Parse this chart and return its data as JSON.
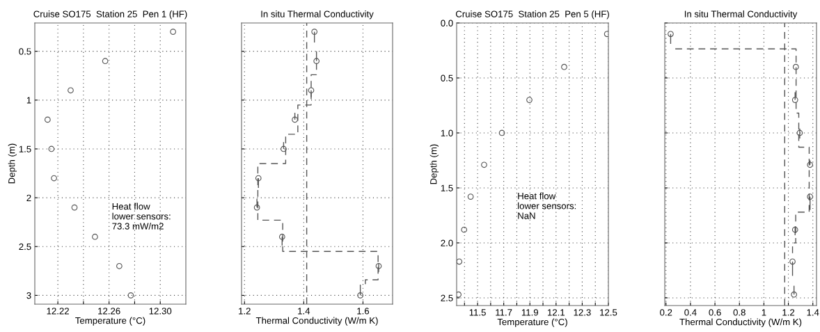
{
  "chart_data": [
    {
      "type": "scatter",
      "title": "Cruise SO175  Station 25  Pen 1 (HF)",
      "xlabel": "Temperature (°C)",
      "ylabel": "Depth (m)",
      "annotations": [
        "Heat flow\nlower sensors:\n73.3 mW/m2"
      ],
      "xlim": [
        12.202,
        12.32
      ],
      "xticks": [
        12.22,
        {
          "value": 12.24,
          "label": null
        },
        12.26,
        {
          "value": 12.28,
          "label": null
        },
        {
          "value": 12.3,
          "label": "12.30"
        }
      ],
      "ylim": [
        3.09,
        0.21
      ],
      "yticks": [
        0.5,
        1,
        1.5,
        2,
        2.5,
        3
      ],
      "grid": true,
      "marker": "circle",
      "series": [
        {
          "color": "#555555",
          "x": [
            12.31,
            12.257,
            12.23,
            12.212,
            12.215,
            12.217,
            12.233,
            12.249,
            12.268,
            12.277
          ],
          "values": [
            0.3,
            0.6,
            0.9,
            1.2,
            1.5,
            1.8,
            2.1,
            2.4,
            2.7,
            3.0
          ]
        }
      ]
    },
    {
      "type": "scatter",
      "title": "In situ Thermal Conductivity",
      "xlabel": "Thermal Conductivity (W/m K)",
      "xlim": [
        1.19,
        1.7
      ],
      "xticks": [
        1.2,
        1.4,
        1.6
      ],
      "ylim": [
        3.09,
        0.21
      ],
      "yticks": [
        0.5,
        1,
        1.5,
        2,
        2.5,
        3
      ],
      "tick_labels": "x",
      "grid": true,
      "marker": "circle",
      "ref_lines": [
        {
          "axis": "x",
          "value": 1.41,
          "color": "#555555",
          "line_style": "dashed"
        }
      ],
      "series": [
        {
          "color": "#555555",
          "x": [
            1.436,
            1.443,
            1.425,
            1.37,
            1.332,
            1.247,
            1.242,
            1.327,
            1.653,
            1.591
          ],
          "values": [
            0.3,
            0.6,
            0.9,
            1.2,
            1.5,
            1.8,
            2.1,
            2.4,
            2.7,
            3.0
          ],
          "errors": [
            [
              0.3,
              0.41
            ],
            [
              0.5,
              0.6
            ],
            [
              0.9,
              0.97
            ],
            [
              1.13,
              1.2
            ],
            [
              1.43,
              1.5
            ],
            [
              1.8,
              1.9
            ],
            [
              2.01,
              2.1
            ],
            [
              2.4,
              2.49
            ],
            [
              2.67,
              2.76
            ],
            [
              2.89,
              3.0
            ]
          ]
        },
        {
          "type": "line",
          "line_style": "dashed",
          "marker": "none",
          "color": "#555555",
          "x": [
            1.443,
            1.443,
            1.425,
            1.425,
            1.38,
            1.38,
            1.339,
            1.339,
            1.245,
            1.245,
            1.329,
            1.329,
            1.651,
            1.651,
            1.608,
            1.608
          ],
          "values": [
            0.62,
            0.74,
            0.74,
            1.05,
            1.05,
            1.35,
            1.35,
            1.65,
            1.65,
            2.23,
            2.23,
            2.55,
            2.55,
            2.84,
            2.84,
            2.9
          ]
        }
      ]
    },
    {
      "type": "scatter",
      "title": "Cruise SO175  Station 25  Pen 5 (HF)",
      "xlabel": "Temperature (°C)",
      "ylabel": "Depth (m)",
      "annotations": [
        "Heat flow\nlower sensors:\nNaN"
      ],
      "xlim": [
        11.34,
        12.5
      ],
      "xticks": [
        {
          "value": 11.4,
          "label": null
        },
        11.5,
        {
          "value": 11.6,
          "label": null
        },
        11.7,
        {
          "value": 11.8,
          "label": null
        },
        11.9,
        {
          "value": 12.0,
          "label": null
        },
        12.1,
        {
          "value": 12.2,
          "label": null
        },
        12.3,
        {
          "value": 12.4,
          "label": null
        },
        12.5
      ],
      "ylim": [
        2.57,
        0
      ],
      "yticks": [
        {
          "value": 0,
          "label": "0.0"
        },
        0.5,
        {
          "value": 1,
          "label": "1.0"
        },
        1.5,
        {
          "value": 2,
          "label": "2.0"
        },
        2.5
      ],
      "grid": true,
      "marker": "circle",
      "series": [
        {
          "color": "#555555",
          "x": [
            12.49,
            12.162,
            11.896,
            11.686,
            11.55,
            11.447,
            11.397,
            11.36,
            11.354
          ],
          "values": [
            0.1,
            0.4,
            0.7,
            1.0,
            1.29,
            1.58,
            1.88,
            2.17,
            2.47
          ]
        }
      ]
    },
    {
      "type": "scatter",
      "title": "In situ Thermal Conductivity",
      "xlabel": "Thermal Conductivity (W/m K)",
      "xlim": [
        0.19,
        1.43
      ],
      "xticks": [
        0.2,
        0.4,
        0.6,
        0.8,
        1,
        1.2,
        1.4
      ],
      "ylim": [
        2.57,
        0
      ],
      "yticks": [
        0,
        0.5,
        1,
        1.5,
        2,
        2.5
      ],
      "tick_labels": "x",
      "grid": true,
      "marker": "circle",
      "ref_lines": [
        {
          "axis": "x",
          "value": 1.17,
          "color": "#555555",
          "line_style": "dashed"
        }
      ],
      "series": [
        {
          "color": "#555555",
          "x": [
            0.238,
            1.261,
            1.255,
            1.293,
            1.377,
            1.377,
            1.255,
            1.234,
            1.246
          ],
          "values": [
            0.1,
            0.4,
            0.7,
            1.0,
            1.29,
            1.58,
            1.88,
            2.17,
            2.47
          ],
          "errors": [
            [
              0.1,
              0.19
            ],
            null,
            [
              0.63,
              0.7
            ],
            [
              0.96,
              1.05
            ],
            [
              1.25,
              1.29
            ],
            [
              1.58,
              1.7
            ],
            [
              1.85,
              1.93
            ],
            [
              2.17,
              2.3
            ],
            [
              2.39,
              2.47
            ]
          ]
        },
        {
          "type": "line",
          "line_style": "dashed",
          "marker": "none",
          "color": "#555555",
          "x": [
            0.276,
            1.263,
            1.263,
            1.285,
            1.285,
            1.37,
            1.37,
            1.26,
            1.26,
            1.234,
            1.234
          ],
          "values": [
            0.236,
            0.236,
            0.82,
            0.82,
            1.13,
            1.13,
            1.72,
            1.72,
            2.0,
            2.0,
            2.1
          ]
        }
      ]
    }
  ]
}
